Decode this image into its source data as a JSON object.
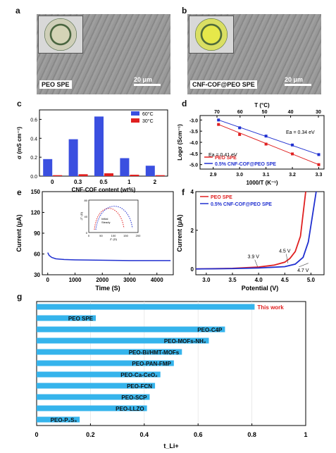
{
  "panels": {
    "a": {
      "letter": "a",
      "caption": "PEO SPE",
      "scale": "20 μm"
    },
    "b": {
      "letter": "b",
      "caption": "CNF-COF@PEO SPE",
      "scale": "20 μm"
    },
    "c": {
      "letter": "c"
    },
    "d": {
      "letter": "d"
    },
    "e": {
      "letter": "e"
    },
    "f": {
      "letter": "f"
    },
    "g": {
      "letter": "g"
    }
  },
  "chart_data": [
    {
      "id": "c",
      "type": "bar",
      "xlabel": "CNF-COF content (wt%)",
      "ylabel": "σ (mS cm⁻¹)",
      "categories": [
        "0",
        "0.3",
        "0.5",
        "1",
        "2"
      ],
      "ylim": [
        0,
        0.7
      ],
      "yticks": [
        "0.0",
        "0.2",
        "0.4",
        "0.6"
      ],
      "series": [
        {
          "name": "60°C",
          "color": "#3a4fe0",
          "values": [
            0.18,
            0.39,
            0.63,
            0.19,
            0.11
          ]
        },
        {
          "name": "30°C",
          "color": "#e02020",
          "values": [
            0.01,
            0.02,
            0.03,
            0.015,
            0.01
          ]
        }
      ],
      "legend": "top-right"
    },
    {
      "id": "d",
      "type": "scatter",
      "xlabel": "1000/T (K⁻¹)",
      "ylabel": "Logσ (Scm⁻¹)",
      "x2label": "T (°C)",
      "xlim": [
        2.85,
        3.32
      ],
      "ylim": [
        -5.2,
        -2.8
      ],
      "xticks": [
        "2.9",
        "3.0",
        "3.1",
        "3.2",
        "3.3"
      ],
      "yticks": [
        "-3.0",
        "-3.5",
        "-4.0",
        "-4.5",
        "-5.0"
      ],
      "top_ticks": [
        "70",
        "60",
        "50",
        "40",
        "30"
      ],
      "annotations": [
        "Ea = 0.34 eV",
        "Ea = 0.41 eV"
      ],
      "series": [
        {
          "name": "PEO SPE",
          "color": "#e02020",
          "x": [
            2.92,
            3.0,
            3.1,
            3.2,
            3.3
          ],
          "y": [
            -3.2,
            -3.65,
            -4.08,
            -4.52,
            -5.0
          ]
        },
        {
          "name": "0.5% CNF-COF@PEO SPE",
          "color": "#2030d0",
          "x": [
            2.92,
            3.0,
            3.1,
            3.2,
            3.3
          ],
          "y": [
            -3.0,
            -3.35,
            -3.72,
            -4.12,
            -4.55
          ]
        }
      ],
      "legend": "bottom-left"
    },
    {
      "id": "e",
      "type": "line",
      "xlabel": "Time (S)",
      "ylabel": "Current (μA)",
      "xlim": [
        -200,
        4600
      ],
      "ylim": [
        30,
        150
      ],
      "xticks": [
        "0",
        "1000",
        "2000",
        "3000",
        "4000"
      ],
      "yticks": [
        "30",
        "60",
        "90",
        "120",
        "150"
      ],
      "series": [
        {
          "color": "#2030d0",
          "x": [
            0,
            50,
            150,
            300,
            600,
            1000,
            2000,
            3000,
            4000,
            4500
          ],
          "y": [
            62,
            58,
            55,
            53,
            52,
            51.5,
            51,
            50.5,
            50.5,
            50.5
          ]
        }
      ],
      "inset": {
        "xlabel": "Z' (Ω)",
        "ylabel": "-Z'' (Ω)",
        "xticks": [
          "0",
          "50",
          "100",
          "150",
          "200"
        ],
        "yticks": [
          "0",
          "40",
          "80"
        ],
        "annotations": [
          "Initial",
          "Steady"
        ]
      }
    },
    {
      "id": "f",
      "type": "line",
      "xlabel": "Potential (V)",
      "ylabel": "Current (μA)",
      "xlim": [
        2.8,
        5.25
      ],
      "ylim": [
        -0.3,
        4
      ],
      "xticks": [
        "3.0",
        "3.5",
        "4.0",
        "4.5",
        "5.0"
      ],
      "yticks": [
        "0",
        "2",
        "4"
      ],
      "annotations": [
        "3.9 V",
        "4.5 V",
        "4.7 V"
      ],
      "series": [
        {
          "name": "PEO SPE",
          "color": "#e02020",
          "x": [
            2.8,
            3.5,
            4.0,
            4.3,
            4.5,
            4.6,
            4.7,
            4.8,
            4.9
          ],
          "y": [
            0,
            0.03,
            0.1,
            0.2,
            0.35,
            0.55,
            0.9,
            1.7,
            4.0
          ]
        },
        {
          "name": "0.5% CNF-COF@PEO SPE",
          "color": "#2030d0",
          "x": [
            2.8,
            3.5,
            4.0,
            4.5,
            4.7,
            4.85,
            4.95,
            5.02,
            5.1
          ],
          "y": [
            0,
            0.02,
            0.05,
            0.12,
            0.25,
            0.6,
            1.4,
            2.6,
            4.0
          ]
        }
      ],
      "legend": "top-left"
    },
    {
      "id": "g",
      "type": "bar",
      "orientation": "horizontal",
      "xlabel": "t_Li+",
      "xlim": [
        0,
        1.0
      ],
      "xticks": [
        "0",
        "0.2",
        "0.4",
        "0.6",
        "0.8",
        "1"
      ],
      "color": "#35b4ec",
      "categories": [
        "This work",
        "PEO SPE",
        "PEO-C4P",
        "PEO-MOFs-NH₂",
        "PEO-Bi/HMT-MOFs",
        "PEO-PAN-FMP",
        "PEO-Ca-CeO₂",
        "PEO-FCN",
        "PEO-SCP",
        "PEO-LLZO",
        "PEO-P₂S₅"
      ],
      "values": [
        0.81,
        0.22,
        0.7,
        0.64,
        0.54,
        0.51,
        0.46,
        0.44,
        0.42,
        0.41,
        0.16
      ],
      "highlight": {
        "label": "This work",
        "color": "#e02020"
      }
    }
  ]
}
